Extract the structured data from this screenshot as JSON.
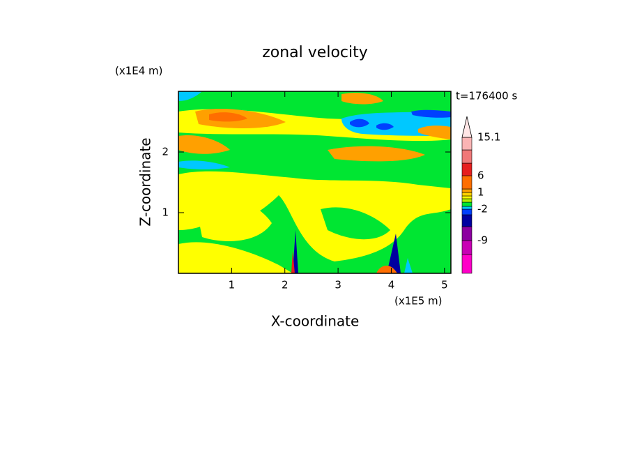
{
  "chart_data": {
    "type": "contour",
    "title": "zonal velocity",
    "time_label": "t=176400 s",
    "x_label": "X-coordinate",
    "y_label": "Z-coordinate",
    "x_scale_label": "(x1E5 m)",
    "y_scale_label": "(x1E4 m)",
    "xlim": [
      0,
      5.12
    ],
    "ylim": [
      0,
      3
    ],
    "xticks": [
      1,
      2,
      3,
      4,
      5
    ],
    "yticks": [
      1,
      2
    ],
    "colorbar": {
      "levels": [
        -12,
        -9,
        -6,
        -4,
        -2,
        -1,
        -0.5,
        0,
        0.5,
        1,
        2,
        6,
        9,
        12,
        15.1
      ],
      "colors": [
        "#ff00c8",
        "#c800b4",
        "#8c00a0",
        "#0000a0",
        "#0040ff",
        "#00c8ff",
        "#00e632",
        "#b4f000",
        "#ffff00",
        "#ffd200",
        "#ffa000",
        "#ff6e00",
        "#e61e1e",
        "#f07878",
        "#fab4b4",
        "#ffe6e6"
      ],
      "ticks": [
        15.1,
        6,
        1,
        -2,
        -9
      ]
    }
  }
}
